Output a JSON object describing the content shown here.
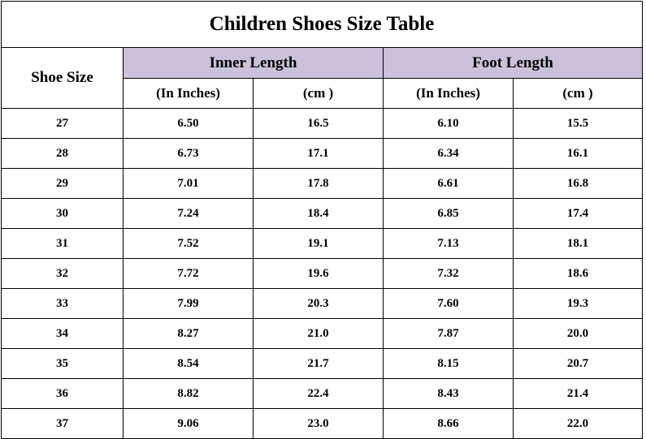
{
  "header": {
    "title": "Children Shoes Size Table"
  },
  "table": {
    "row_header": "Shoe Size",
    "groups": [
      "Inner Length",
      "Foot Length"
    ],
    "subheaders": [
      "(In Inches)",
      "(cm )",
      "(In Inches)",
      "(cm )"
    ],
    "rows": [
      [
        "27",
        "6.50",
        "16.5",
        "6.10",
        "15.5"
      ],
      [
        "28",
        "6.73",
        "17.1",
        "6.34",
        "16.1"
      ],
      [
        "29",
        "7.01",
        "17.8",
        "6.61",
        "16.8"
      ],
      [
        "30",
        "7.24",
        "18.4",
        "6.85",
        "17.4"
      ],
      [
        "31",
        "7.52",
        "19.1",
        "7.13",
        "18.1"
      ],
      [
        "32",
        "7.72",
        "19.6",
        "7.32",
        "18.6"
      ],
      [
        "33",
        "7.99",
        "20.3",
        "7.60",
        "19.3"
      ],
      [
        "34",
        "8.27",
        "21.0",
        "7.87",
        "20.0"
      ],
      [
        "35",
        "8.54",
        "21.7",
        "8.15",
        "20.7"
      ],
      [
        "36",
        "8.82",
        "22.4",
        "8.43",
        "21.4"
      ],
      [
        "37",
        "9.06",
        "23.0",
        "8.66",
        "22.0"
      ]
    ]
  }
}
